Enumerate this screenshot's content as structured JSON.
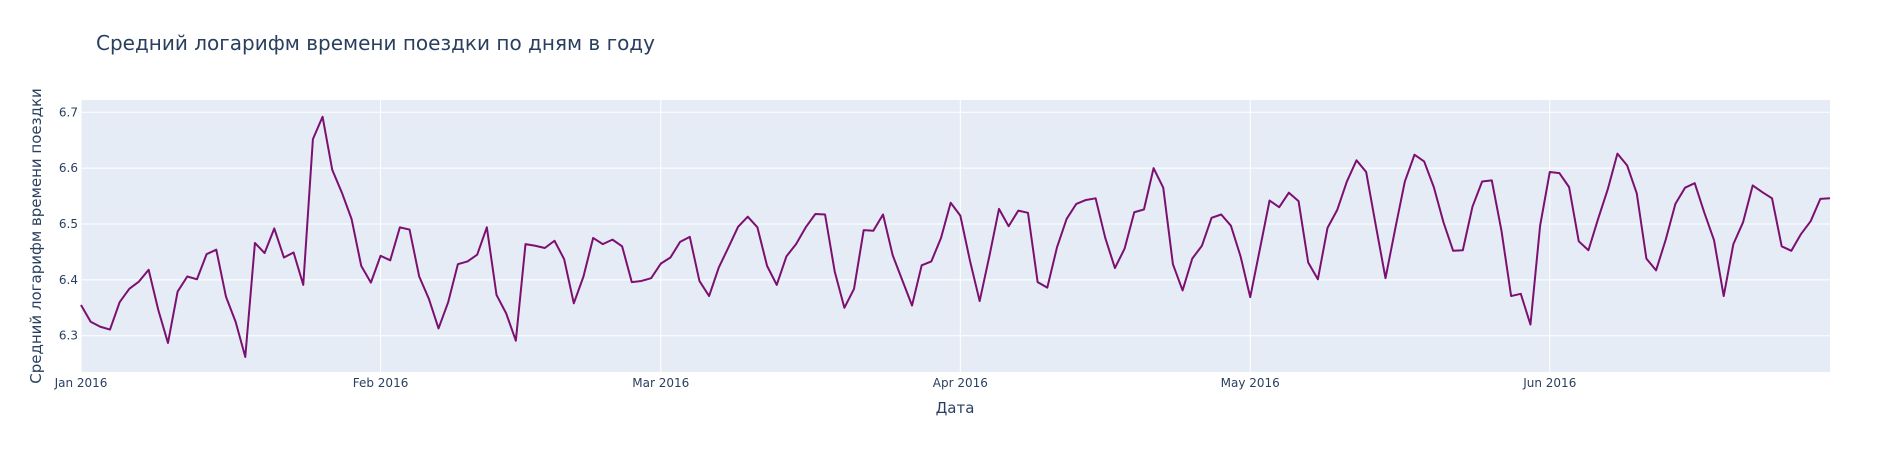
{
  "chart_data": {
    "type": "line",
    "title": "Средний логарифм времени поездки по дням в году",
    "xlabel": "Дата",
    "ylabel": "Средний логарифм времени поездки",
    "x_start": "2016-01-01",
    "x_end": "2016-06-30",
    "ylim": [
      6.235,
      6.722
    ],
    "grid": true,
    "x_ticks": [
      {
        "date": "2016-01-01",
        "label": "Jan 2016"
      },
      {
        "date": "2016-02-01",
        "label": "Feb 2016"
      },
      {
        "date": "2016-03-01",
        "label": "Mar 2016"
      },
      {
        "date": "2016-04-01",
        "label": "Apr 2016"
      },
      {
        "date": "2016-05-01",
        "label": "May 2016"
      },
      {
        "date": "2016-06-01",
        "label": "Jun 2016"
      }
    ],
    "y_ticks": [
      6.3,
      6.4,
      6.5,
      6.6,
      6.7
    ],
    "colors": {
      "line": "#7b1070",
      "plot_bg": "#e5ecf6",
      "grid": "#ffffff",
      "text": "#2a3f5f"
    },
    "series": [
      {
        "values": [
          6.355,
          6.325,
          6.316,
          6.311,
          6.36,
          6.384,
          6.397,
          6.418,
          6.346,
          6.287,
          6.379,
          6.406,
          6.401,
          6.446,
          6.454,
          6.37,
          6.325,
          6.262,
          6.466,
          6.448,
          6.492,
          6.44,
          6.449,
          6.391,
          6.652,
          6.692,
          6.597,
          6.556,
          6.509,
          6.425,
          6.395,
          6.443,
          6.435,
          6.494,
          6.49,
          6.406,
          6.366,
          6.313,
          6.36,
          6.428,
          6.433,
          6.445,
          6.494,
          6.373,
          6.34,
          6.291,
          6.464,
          6.461,
          6.457,
          6.47,
          6.437,
          6.358,
          6.406,
          6.475,
          6.464,
          6.472,
          6.46,
          6.396,
          6.398,
          6.403,
          6.429,
          6.44,
          6.468,
          6.477,
          6.398,
          6.371,
          6.422,
          6.458,
          6.495,
          6.513,
          6.494,
          6.425,
          6.391,
          6.442,
          6.464,
          6.494,
          6.518,
          6.517,
          6.415,
          6.35,
          6.384,
          6.489,
          6.488,
          6.517,
          6.444,
          6.399,
          6.354,
          6.426,
          6.433,
          6.475,
          6.538,
          6.515,
          6.434,
          6.362,
          6.442,
          6.527,
          6.496,
          6.524,
          6.52,
          6.396,
          6.386,
          6.458,
          6.509,
          6.536,
          6.543,
          6.546,
          6.475,
          6.421,
          6.456,
          6.521,
          6.526,
          6.6,
          6.565,
          6.428,
          6.381,
          6.438,
          6.461,
          6.511,
          6.517,
          6.497,
          6.442,
          6.369,
          6.455,
          6.542,
          6.53,
          6.556,
          6.541,
          6.431,
          6.401,
          6.493,
          6.525,
          6.576,
          6.614,
          6.593,
          6.497,
          6.403,
          6.491,
          6.576,
          6.624,
          6.612,
          6.566,
          6.503,
          6.452,
          6.453,
          6.531,
          6.576,
          6.578,
          6.488,
          6.371,
          6.375,
          6.32,
          6.497,
          6.593,
          6.591,
          6.566,
          6.469,
          6.453,
          6.509,
          6.562,
          6.626,
          6.605,
          6.555,
          6.438,
          6.417,
          6.472,
          6.536,
          6.565,
          6.573,
          6.52,
          6.471,
          6.371,
          6.464,
          6.503,
          6.569,
          6.557,
          6.546,
          6.46,
          6.452,
          6.482,
          6.505,
          6.545,
          6.546
        ]
      }
    ]
  }
}
